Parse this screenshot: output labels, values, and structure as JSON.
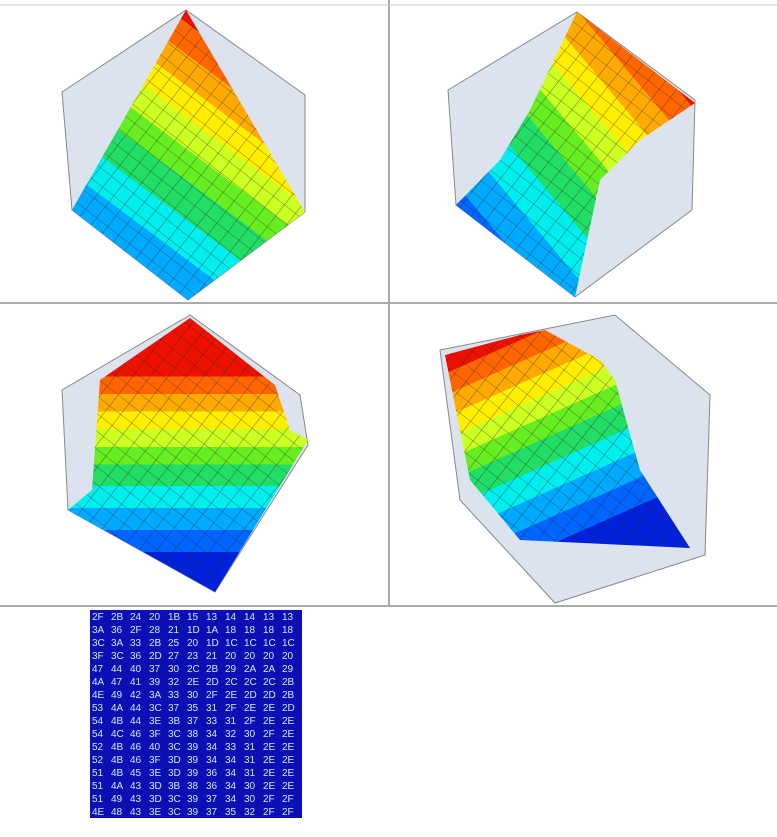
{
  "table": {
    "rows": [
      [
        "2F",
        "2B",
        "24",
        "20",
        "1B",
        "15",
        "13",
        "14",
        "14",
        "13",
        "13"
      ],
      [
        "3A",
        "36",
        "2F",
        "28",
        "21",
        "1D",
        "1A",
        "18",
        "18",
        "18",
        "18"
      ],
      [
        "3C",
        "3A",
        "33",
        "2B",
        "25",
        "20",
        "1D",
        "1C",
        "1C",
        "1C",
        "1C"
      ],
      [
        "3F",
        "3C",
        "36",
        "2D",
        "27",
        "23",
        "21",
        "20",
        "20",
        "20",
        "20"
      ],
      [
        "47",
        "44",
        "40",
        "37",
        "30",
        "2C",
        "2B",
        "29",
        "2A",
        "2A",
        "29"
      ],
      [
        "4A",
        "47",
        "41",
        "39",
        "32",
        "2E",
        "2D",
        "2C",
        "2C",
        "2C",
        "2B"
      ],
      [
        "4E",
        "49",
        "42",
        "3A",
        "33",
        "30",
        "2F",
        "2E",
        "2D",
        "2D",
        "2B"
      ],
      [
        "53",
        "4A",
        "44",
        "3C",
        "37",
        "35",
        "31",
        "2F",
        "2E",
        "2E",
        "2D"
      ],
      [
        "54",
        "4B",
        "44",
        "3E",
        "3B",
        "37",
        "33",
        "31",
        "2F",
        "2E",
        "2E"
      ],
      [
        "54",
        "4C",
        "46",
        "3F",
        "3C",
        "38",
        "34",
        "32",
        "30",
        "2F",
        "2E"
      ],
      [
        "52",
        "4B",
        "46",
        "40",
        "3C",
        "39",
        "34",
        "33",
        "31",
        "2E",
        "2E"
      ],
      [
        "52",
        "4B",
        "46",
        "3F",
        "3D",
        "39",
        "34",
        "34",
        "31",
        "2E",
        "2E"
      ],
      [
        "51",
        "4B",
        "45",
        "3E",
        "3D",
        "39",
        "36",
        "34",
        "31",
        "2E",
        "2E"
      ],
      [
        "51",
        "4A",
        "43",
        "3D",
        "3B",
        "38",
        "36",
        "34",
        "30",
        "2E",
        "2E"
      ],
      [
        "51",
        "49",
        "43",
        "3D",
        "3C",
        "39",
        "37",
        "34",
        "30",
        "2F",
        "2F"
      ],
      [
        "4E",
        "48",
        "43",
        "3E",
        "3C",
        "39",
        "37",
        "35",
        "32",
        "2F",
        "2F"
      ]
    ]
  }
}
